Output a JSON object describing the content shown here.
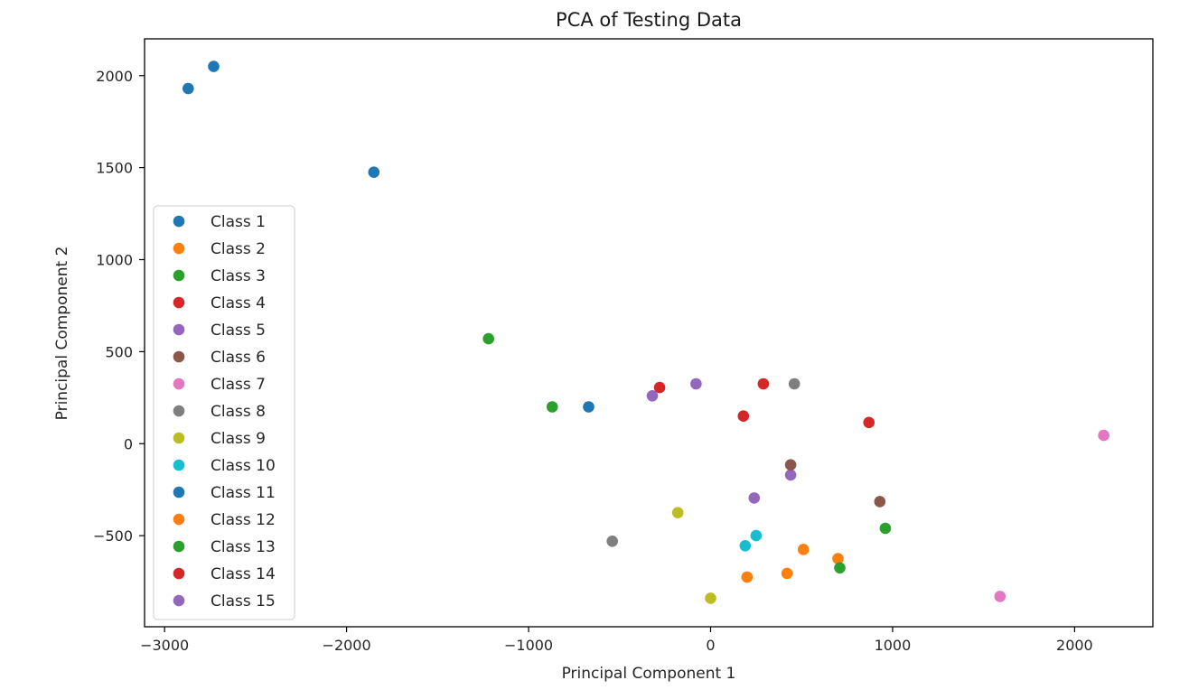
{
  "chart_data": {
    "type": "scatter",
    "title": "PCA of Testing Data",
    "xlabel": "Principal Component 1",
    "ylabel": "Principal Component 2",
    "xlim": [
      -3110,
      2430
    ],
    "ylim": [
      -995,
      2200
    ],
    "xticks": [
      -3000,
      -2000,
      -1000,
      0,
      1000,
      2000
    ],
    "yticks": [
      2000,
      1500,
      1000,
      500,
      0,
      -500
    ],
    "xtick_labels": [
      "−3000",
      "−2000",
      "−1000",
      "0",
      "1000",
      "2000"
    ],
    "ytick_labels": [
      "2000",
      "1500",
      "1000",
      "500",
      "0",
      "−500"
    ],
    "grid": false,
    "legend_position": "left",
    "series": [
      {
        "name": "Class 1",
        "color": "#1f77b4",
        "points": [
          [
            -2870,
            1930
          ],
          [
            -2730,
            2050
          ],
          [
            -1850,
            1475
          ],
          [
            -670,
            200
          ]
        ]
      },
      {
        "name": "Class 2",
        "color": "#ff7f0e",
        "points": [
          [
            700,
            -625
          ],
          [
            420,
            -705
          ],
          [
            200,
            -725
          ],
          [
            510,
            -575
          ]
        ]
      },
      {
        "name": "Class 3",
        "color": "#2ca02c",
        "points": [
          [
            -1220,
            570
          ],
          [
            -870,
            200
          ],
          [
            960,
            -460
          ],
          [
            710,
            -675
          ]
        ]
      },
      {
        "name": "Class 4",
        "color": "#d62728",
        "points": [
          [
            -280,
            305
          ],
          [
            290,
            325
          ],
          [
            180,
            150
          ],
          [
            870,
            115
          ]
        ]
      },
      {
        "name": "Class 5",
        "color": "#9467bd",
        "points": [
          [
            -320,
            260
          ],
          [
            -80,
            325
          ],
          [
            440,
            -170
          ],
          [
            240,
            -295
          ]
        ]
      },
      {
        "name": "Class 6",
        "color": "#8c564b",
        "points": [
          [
            440,
            -115
          ],
          [
            930,
            -315
          ]
        ]
      },
      {
        "name": "Class 7",
        "color": "#e377c2",
        "points": [
          [
            2160,
            45
          ],
          [
            1590,
            -830
          ]
        ]
      },
      {
        "name": "Class 8",
        "color": "#7f7f7f",
        "points": [
          [
            460,
            325
          ],
          [
            -540,
            -530
          ]
        ]
      },
      {
        "name": "Class 9",
        "color": "#bcbd22",
        "points": [
          [
            -180,
            -375
          ],
          [
            0,
            -840
          ]
        ]
      },
      {
        "name": "Class 10",
        "color": "#17becf",
        "points": [
          [
            250,
            -500
          ],
          [
            190,
            -555
          ]
        ]
      },
      {
        "name": "Class 11",
        "color": "#1f77b4",
        "points": []
      },
      {
        "name": "Class 12",
        "color": "#ff7f0e",
        "points": []
      },
      {
        "name": "Class 13",
        "color": "#2ca02c",
        "points": []
      },
      {
        "name": "Class 14",
        "color": "#d62728",
        "points": []
      },
      {
        "name": "Class 15",
        "color": "#9467bd",
        "points": []
      }
    ]
  }
}
